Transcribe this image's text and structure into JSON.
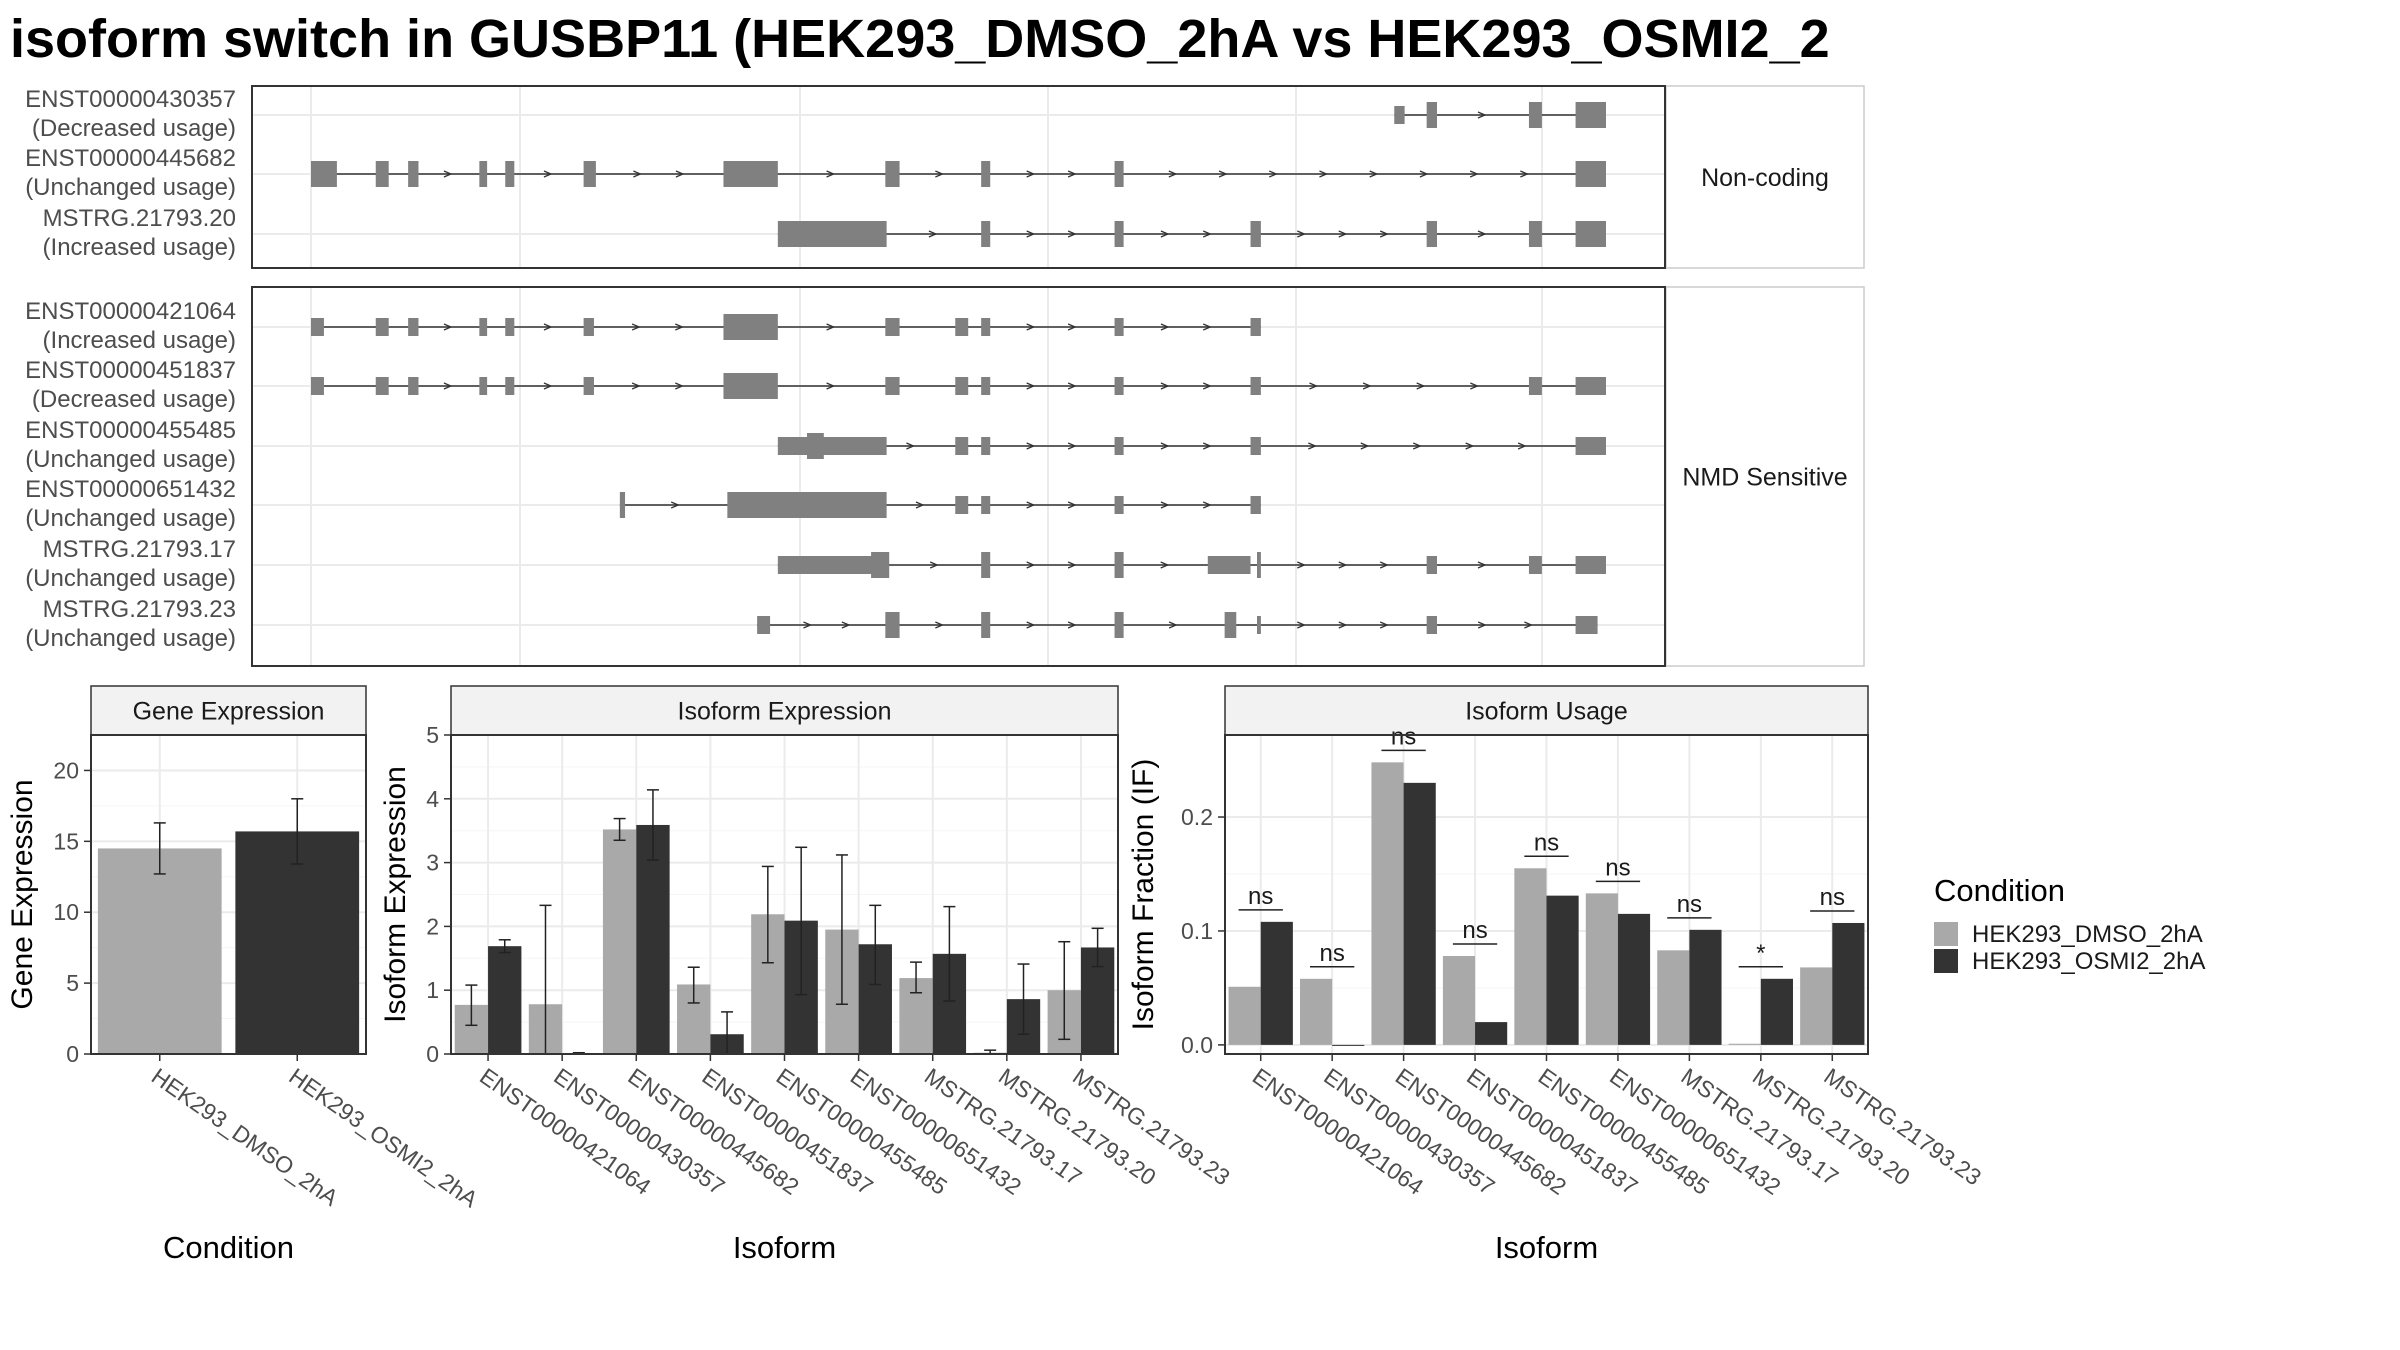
{
  "title": "isoform switch in GUSBP11 (HEK293_DMSO_2hA vs HEK293_OSMI2_2",
  "colors": {
    "dmso": "#a9a9a9",
    "osmi": "#333333",
    "exon": "#808080",
    "grid": "#ebebeb",
    "strip": "#f2f2f2",
    "frame": "#333333"
  },
  "chart_data": [
    {
      "type": "gene-structure",
      "panels": [
        {
          "label": "Non-coding",
          "isoforms": [
            {
              "name": "ENST00000430357",
              "usage": "(Decreased usage)",
              "exons": [
                [
                  0.8365,
                  0.8445,
                  "n"
                ],
                [
                  0.8615,
                  0.8695,
                  "t"
                ],
                [
                  0.9405,
                  0.9505,
                  "t"
                ],
                [
                  0.9765,
                  1.0,
                  "t"
                ]
              ]
            },
            {
              "name": "ENST00000445682",
              "usage": "(Unchanged usage)",
              "exons": [
                [
                  0.0,
                  0.02,
                  "t"
                ],
                [
                  0.05,
                  0.06,
                  "t"
                ],
                [
                  0.075,
                  0.083,
                  "t"
                ],
                [
                  0.13,
                  0.136,
                  "t"
                ],
                [
                  0.15,
                  0.157,
                  "t"
                ],
                [
                  0.2105,
                  0.22,
                  "t"
                ],
                [
                  0.3185,
                  0.3605,
                  "t"
                ],
                [
                  0.4435,
                  0.4545,
                  "t"
                ],
                [
                  0.5175,
                  0.5245,
                  "t"
                ],
                [
                  0.6205,
                  0.6275,
                  "t"
                ],
                [
                  0.9765,
                  1.0,
                  "t"
                ]
              ]
            },
            {
              "name": "MSTRG.21793.20",
              "usage": "(Increased usage)",
              "exons": [
                [
                  0.3605,
                  0.4445,
                  "t"
                ],
                [
                  0.5175,
                  0.5245,
                  "t"
                ],
                [
                  0.6205,
                  0.6275,
                  "t"
                ],
                [
                  0.7255,
                  0.7335,
                  "t"
                ],
                [
                  0.8615,
                  0.8695,
                  "t"
                ],
                [
                  0.9405,
                  0.9505,
                  "t"
                ],
                [
                  0.9765,
                  1.0,
                  "t"
                ]
              ]
            }
          ]
        },
        {
          "label": "NMD Sensitive",
          "isoforms": [
            {
              "name": "ENST00000421064",
              "usage": "(Increased usage)",
              "exons": [
                [
                  0.0,
                  0.01,
                  "n"
                ],
                [
                  0.05,
                  0.06,
                  "n"
                ],
                [
                  0.075,
                  0.083,
                  "n"
                ],
                [
                  0.13,
                  0.136,
                  "n"
                ],
                [
                  0.15,
                  0.157,
                  "n"
                ],
                [
                  0.2105,
                  0.2185,
                  "n"
                ],
                [
                  0.3185,
                  0.3605,
                  "t"
                ],
                [
                  0.4435,
                  0.4545,
                  "n"
                ],
                [
                  0.4975,
                  0.5075,
                  "n"
                ],
                [
                  0.5175,
                  0.5245,
                  "n"
                ],
                [
                  0.6205,
                  0.6275,
                  "n"
                ],
                [
                  0.7255,
                  0.7335,
                  "n"
                ]
              ]
            },
            {
              "name": "ENST00000451837",
              "usage": "(Decreased usage)",
              "exons": [
                [
                  0.0,
                  0.01,
                  "n"
                ],
                [
                  0.05,
                  0.06,
                  "n"
                ],
                [
                  0.075,
                  0.083,
                  "n"
                ],
                [
                  0.13,
                  0.136,
                  "n"
                ],
                [
                  0.15,
                  0.157,
                  "n"
                ],
                [
                  0.2105,
                  0.2185,
                  "n"
                ],
                [
                  0.3185,
                  0.3605,
                  "t"
                ],
                [
                  0.4435,
                  0.4545,
                  "n"
                ],
                [
                  0.4975,
                  0.5075,
                  "n"
                ],
                [
                  0.5175,
                  0.5245,
                  "n"
                ],
                [
                  0.6205,
                  0.6275,
                  "n"
                ],
                [
                  0.7255,
                  0.7335,
                  "n"
                ],
                [
                  0.9405,
                  0.9505,
                  "n"
                ],
                [
                  0.9765,
                  1.0,
                  "n"
                ]
              ]
            },
            {
              "name": "ENST00000455485",
              "usage": "(Unchanged usage)",
              "exons": [
                [
                  0.3605,
                  0.4445,
                  "n"
                ],
                [
                  0.383,
                  0.396,
                  "t"
                ],
                [
                  0.4975,
                  0.5075,
                  "n"
                ],
                [
                  0.5175,
                  0.5245,
                  "n"
                ],
                [
                  0.6205,
                  0.6275,
                  "n"
                ],
                [
                  0.7255,
                  0.7335,
                  "n"
                ],
                [
                  0.9765,
                  1.0,
                  "n"
                ]
              ]
            },
            {
              "name": "ENST00000651432",
              "usage": "(Unchanged usage)",
              "exons": [
                [
                  0.2385,
                  0.2425,
                  "t"
                ],
                [
                  0.3215,
                  0.4445,
                  "t"
                ],
                [
                  0.4975,
                  0.5075,
                  "n"
                ],
                [
                  0.5175,
                  0.5245,
                  "n"
                ],
                [
                  0.6205,
                  0.6275,
                  "n"
                ],
                [
                  0.7255,
                  0.7335,
                  "n"
                ]
              ]
            },
            {
              "name": "MSTRG.21793.17",
              "usage": "(Unchanged usage)",
              "exons": [
                [
                  0.3605,
                  0.4445,
                  "n"
                ],
                [
                  0.4325,
                  0.4465,
                  "t"
                ],
                [
                  0.5175,
                  0.5245,
                  "t"
                ],
                [
                  0.6205,
                  0.6275,
                  "t"
                ],
                [
                  0.6925,
                  0.7255,
                  "n"
                ],
                [
                  0.7305,
                  0.7335,
                  "t"
                ],
                [
                  0.8615,
                  0.8695,
                  "n"
                ],
                [
                  0.9405,
                  0.9505,
                  "n"
                ],
                [
                  0.9765,
                  1.0,
                  "n"
                ]
              ]
            },
            {
              "name": "MSTRG.21793.23",
              "usage": "(Unchanged usage)",
              "exons": [
                [
                  0.3445,
                  0.3545,
                  "n"
                ],
                [
                  0.4435,
                  0.4545,
                  "t"
                ],
                [
                  0.5175,
                  0.5245,
                  "t"
                ],
                [
                  0.6205,
                  0.6275,
                  "t"
                ],
                [
                  0.7055,
                  0.7145,
                  "t"
                ],
                [
                  0.7305,
                  0.7335,
                  "n"
                ],
                [
                  0.8615,
                  0.8695,
                  "n"
                ],
                [
                  0.9765,
                  0.9935,
                  "n"
                ]
              ]
            }
          ]
        }
      ]
    },
    {
      "type": "bar",
      "title": "Gene Expression",
      "xlabel": "Condition",
      "ylabel": "Gene Expression",
      "ylim": [
        0,
        22.5
      ],
      "yticks": [
        0,
        5,
        10,
        15,
        20
      ],
      "categories": [
        "HEK293_DMSO_2hA",
        "HEK293_OSMI2_2hA"
      ],
      "values": [
        14.5,
        15.7
      ],
      "errors": [
        [
          12.7,
          16.3
        ],
        [
          13.4,
          18.0
        ]
      ]
    },
    {
      "type": "bar",
      "title": "Isoform Expression",
      "xlabel": "Isoform",
      "ylabel": "Isoform Expression",
      "ylim": [
        0,
        5
      ],
      "yticks": [
        0,
        1,
        2,
        3,
        4,
        5
      ],
      "categories": [
        "ENST00000421064",
        "ENST00000430357",
        "ENST00000445682",
        "ENST00000451837",
        "ENST00000455485",
        "ENST00000651432",
        "MSTRG.21793.17",
        "MSTRG.21793.20",
        "MSTRG.21793.23"
      ],
      "series": [
        {
          "name": "HEK293_DMSO_2hA",
          "values": [
            0.77,
            0.78,
            3.52,
            1.09,
            2.19,
            1.95,
            1.19,
            0.02,
            1.0
          ],
          "errors": [
            [
              0.45,
              1.08
            ],
            [
              0,
              2.33
            ],
            [
              3.35,
              3.69
            ],
            [
              0.8,
              1.36
            ],
            [
              1.43,
              2.94
            ],
            [
              0.78,
              3.12
            ],
            [
              0.96,
              1.44
            ],
            [
              0,
              0.06
            ],
            [
              0.23,
              1.76
            ]
          ]
        },
        {
          "name": "HEK293_OSMI2_2hA",
          "values": [
            1.69,
            0.0,
            3.59,
            0.31,
            2.09,
            1.72,
            1.57,
            0.86,
            1.67
          ],
          "errors": [
            [
              1.59,
              1.79
            ],
            [
              0,
              0.02
            ],
            [
              3.04,
              4.14
            ],
            [
              0,
              0.66
            ],
            [
              0.93,
              3.24
            ],
            [
              1.09,
              2.33
            ],
            [
              0.83,
              2.31
            ],
            [
              0.31,
              1.41
            ],
            [
              1.37,
              1.97
            ]
          ]
        }
      ]
    },
    {
      "type": "bar",
      "title": "Isoform Usage",
      "xlabel": "Isoform",
      "ylabel": "Isoform Fraction (IF)",
      "ylim": [
        -0.008,
        0.272
      ],
      "yticks": [
        0.0,
        0.1,
        0.2
      ],
      "ytick_labels": [
        "0.0",
        "0.1",
        "0.2"
      ],
      "categories": [
        "ENST00000421064",
        "ENST00000430357",
        "ENST00000445682",
        "ENST00000451837",
        "ENST00000455485",
        "ENST00000651432",
        "MSTRG.21793.17",
        "MSTRG.21793.20",
        "MSTRG.21793.23"
      ],
      "series": [
        {
          "name": "HEK293_DMSO_2hA",
          "values": [
            0.051,
            0.058,
            0.248,
            0.078,
            0.155,
            0.133,
            0.083,
            0.001,
            0.068
          ]
        },
        {
          "name": "HEK293_OSMI2_2hA",
          "values": [
            0.108,
            0.0,
            0.23,
            0.02,
            0.131,
            0.115,
            0.101,
            0.058,
            0.107
          ]
        }
      ],
      "significance": [
        "ns",
        "ns",
        "ns",
        "ns",
        "ns",
        "ns",
        "ns",
        "*",
        "ns"
      ]
    }
  ],
  "legend": {
    "title": "Condition",
    "items": [
      {
        "label": "HEK293_DMSO_2hA",
        "color": "#a9a9a9"
      },
      {
        "label": "HEK293_OSMI2_2hA",
        "color": "#333333"
      }
    ]
  }
}
